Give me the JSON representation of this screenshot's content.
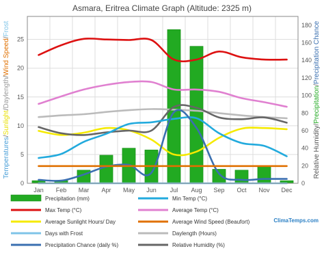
{
  "chart_data": {
    "type": "bar",
    "title": "Asmara, Eritrea Climate Graph (Altitude: 2325 m)",
    "categories": [
      "Jan",
      "Feb",
      "Mar",
      "Apr",
      "May",
      "Jun",
      "Jul",
      "Aug",
      "Sep",
      "Oct",
      "Nov",
      "Dec"
    ],
    "ylabel_left_parts": [
      {
        "text": "Temperatures",
        "color": "#4a9fd8"
      },
      {
        "text": "/",
        "color": "#666666"
      },
      {
        "text": "Sunlight",
        "color": "#e8e000"
      },
      {
        "text": "/",
        "color": "#666666"
      },
      {
        "text": "Daylength",
        "color": "#999999"
      },
      {
        "text": "/",
        "color": "#666666"
      },
      {
        "text": "Wind Speed",
        "color": "#e07000"
      },
      {
        "text": "/",
        "color": "#666666"
      },
      {
        "text": "Frost",
        "color": "#7fc4e8"
      }
    ],
    "ylabel_right_parts": [
      {
        "text": "Relative Humidity",
        "color": "#555555"
      },
      {
        "text": "/",
        "color": "#555555"
      },
      {
        "text": "Precipitation",
        "color": "#22aa22"
      },
      {
        "text": "/",
        "color": "#555555"
      },
      {
        "text": "Precipitation Chance",
        "color": "#3a6fb0"
      }
    ],
    "y_left": {
      "min": 0,
      "max": 29,
      "ticks": [
        0,
        5,
        10,
        15,
        20,
        25
      ]
    },
    "y_right": {
      "min": 0,
      "max": 190,
      "ticks": [
        0,
        20,
        40,
        60,
        80,
        100,
        120,
        140,
        160,
        180
      ]
    },
    "grid": true,
    "legend_position": "bottom",
    "series": [
      {
        "name": "Precipitation (mm)",
        "kind": "bar",
        "axis": "right",
        "color": "#22aa22",
        "values": [
          3,
          3,
          15,
          32,
          40,
          38,
          175,
          156,
          16,
          15,
          20,
          3
        ]
      },
      {
        "name": "Min Temp (°C)",
        "kind": "line",
        "axis": "left",
        "color": "#22aadd",
        "values": [
          4.4,
          5.1,
          7.2,
          8.6,
          10.3,
          10.6,
          11.2,
          11.3,
          8.7,
          7.0,
          6.5,
          4.7
        ]
      },
      {
        "name": "Max Temp (°C)",
        "kind": "line",
        "axis": "left",
        "color": "#dd1111",
        "values": [
          22.3,
          24.0,
          25.1,
          25.0,
          24.9,
          24.9,
          21.5,
          21.5,
          22.9,
          21.9,
          21.5,
          21.5
        ]
      },
      {
        "name": "Average Temp (°C)",
        "kind": "line",
        "axis": "left",
        "color": "#e080d0",
        "values": [
          13.8,
          15.1,
          16.3,
          17.1,
          17.6,
          17.6,
          16.3,
          16.3,
          15.9,
          14.8,
          14.1,
          13.3
        ]
      },
      {
        "name": "Average Sunlight Hours/ Day",
        "kind": "line",
        "axis": "left",
        "color": "#f5ea00",
        "values": [
          9.1,
          8.4,
          8.8,
          9.6,
          9.2,
          7.6,
          5.0,
          5.5,
          7.9,
          9.5,
          9.6,
          9.4
        ]
      },
      {
        "name": "Average Wind Speed (Beaufort)",
        "kind": "line",
        "axis": "left",
        "color": "#e07000",
        "values": [
          3,
          3,
          3,
          3,
          3,
          3,
          3,
          3,
          3,
          3,
          3,
          3
        ]
      },
      {
        "name": "Days with Frost",
        "kind": "line",
        "axis": "left",
        "color": "#7fc4e8",
        "values": [
          0,
          0,
          0,
          0,
          0,
          0,
          0,
          0,
          0,
          0,
          0,
          0
        ]
      },
      {
        "name": "Daylength (Hours)",
        "kind": "line",
        "axis": "left",
        "color": "#bbbbbb",
        "values": [
          11.5,
          11.8,
          12.0,
          12.4,
          12.7,
          12.9,
          12.8,
          12.6,
          12.2,
          11.8,
          11.5,
          11.3
        ]
      },
      {
        "name": "Precipitation Chance (daily %)",
        "kind": "line",
        "axis": "right",
        "color": "#3a6fb0",
        "values": [
          4,
          3,
          10,
          19,
          21,
          12,
          81,
          63,
          11,
          4,
          5,
          5
        ]
      },
      {
        "name": "Relative Humidity (%)",
        "kind": "line",
        "axis": "right",
        "color": "#666666",
        "values": [
          64,
          57,
          55,
          58,
          60,
          60,
          87,
          86,
          75,
          73,
          75,
          69
        ]
      }
    ]
  },
  "watermark": "ClimaTemps.com"
}
